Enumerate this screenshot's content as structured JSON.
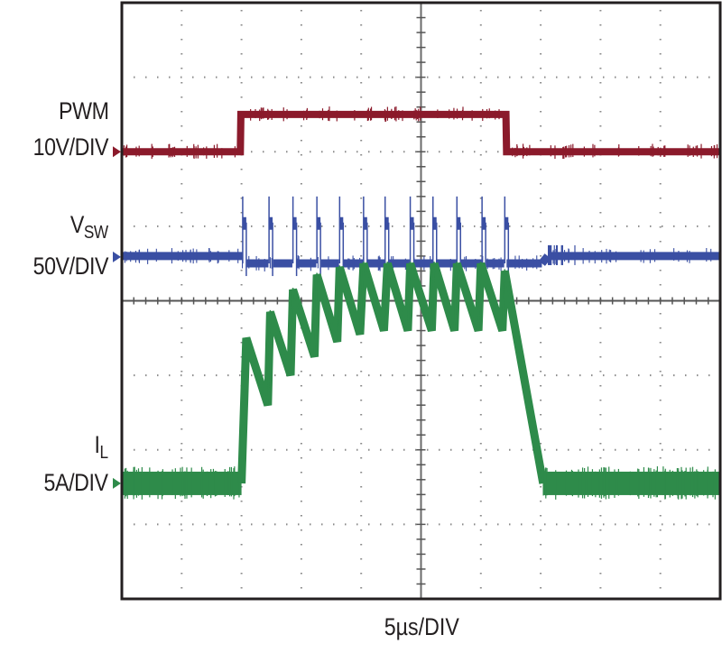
{
  "chart_data": {
    "type": "line",
    "title": "",
    "xlabel": "5µs/DIV",
    "ylabel": "",
    "x_unit": "µs",
    "x_per_div": 5,
    "x_divisions": 10,
    "y_divisions": 8,
    "xlim": [
      0,
      50
    ],
    "grid": true,
    "legend": "left",
    "series": [
      {
        "name": "PWM",
        "scale_label": "10V/DIV",
        "color": "#8b1a2b",
        "marker_level_div": 6.0,
        "points_div": [
          [
            0,
            6.0
          ],
          [
            9.9,
            6.0
          ],
          [
            9.95,
            6.5
          ],
          [
            10.0,
            6.5
          ],
          [
            32.1,
            6.5
          ],
          [
            32.15,
            6.0
          ],
          [
            50,
            6.0
          ]
        ]
      },
      {
        "name": "VSW",
        "label_main": "V",
        "label_sub": "SW",
        "scale_label": "50V/DIV",
        "color": "#3a4fa3",
        "marker_level_div": 4.6,
        "baseline_div": 4.6,
        "on_level_div": 4.55,
        "spike_top_div": 5.4,
        "shoulder_div": 5.05,
        "spike_times_us": [
          10.1,
          12.3,
          14.3,
          16.3,
          18.2,
          20.2,
          22.0,
          24.1,
          26.0,
          28.0,
          30.1,
          32.0
        ],
        "ring_start_us": 35.1,
        "ring_end_us": 50
      },
      {
        "name": "IL",
        "label_main": "I",
        "label_sub": "L",
        "scale_label": "5A/DIV",
        "color": "#2e8b4a",
        "marker_level_div": 1.55,
        "baseline_div": 1.55,
        "sawtooth_peaks": [
          [
            10.4,
            3.5
          ],
          [
            12.4,
            3.85
          ],
          [
            14.3,
            4.15
          ],
          [
            16.3,
            4.35
          ],
          [
            18.2,
            4.45
          ],
          [
            20.2,
            4.5
          ],
          [
            22.2,
            4.5
          ],
          [
            24.1,
            4.5
          ],
          [
            26.1,
            4.5
          ],
          [
            28.0,
            4.5
          ],
          [
            30.0,
            4.5
          ],
          [
            32.0,
            4.4
          ]
        ],
        "sawtooth_valleys": [
          [
            12.2,
            2.6
          ],
          [
            14.1,
            3.0
          ],
          [
            16.1,
            3.25
          ],
          [
            18.0,
            3.45
          ],
          [
            19.9,
            3.55
          ],
          [
            21.9,
            3.6
          ],
          [
            23.9,
            3.6
          ],
          [
            25.9,
            3.6
          ],
          [
            27.8,
            3.6
          ],
          [
            29.8,
            3.6
          ],
          [
            31.8,
            3.6
          ]
        ],
        "rise_start_us": 10.0,
        "fall_end_us": 35.2
      }
    ]
  }
}
